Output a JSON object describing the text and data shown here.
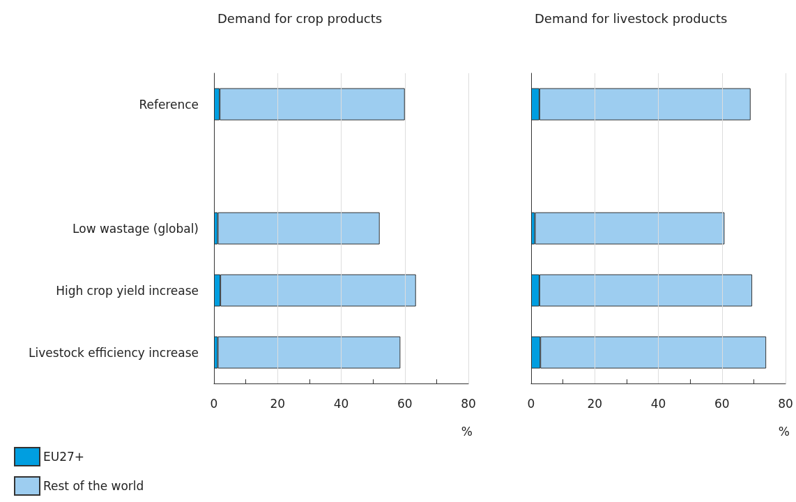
{
  "chart_data": [
    {
      "type": "bar",
      "orientation": "horizontal",
      "stacked": true,
      "title": "Demand for crop products",
      "xlabel": "%",
      "categories": [
        "Reference",
        null,
        "Low wastage (global)",
        "High crop yield increase",
        "Livestock efficiency increase"
      ],
      "series": [
        {
          "name": "EU27+",
          "color": "#009ee0",
          "values": [
            1.8,
            null,
            1.2,
            2.0,
            1.2
          ]
        },
        {
          "name": "Rest of the world",
          "color": "#9dcdf0",
          "values": [
            58.2,
            null,
            50.9,
            61.5,
            57.4
          ]
        }
      ],
      "xlim": [
        0,
        80
      ],
      "xticks": [
        0,
        {
          "value": 10,
          "label": null
        },
        20,
        {
          "value": 30,
          "label": null
        },
        40,
        {
          "value": 50,
          "label": null
        },
        60,
        {
          "value": 70,
          "label": null
        },
        80
      ],
      "grid": "x",
      "legend": "bottom left"
    },
    {
      "type": "bar",
      "orientation": "horizontal",
      "stacked": true,
      "title": "Demand for livestock products",
      "xlabel": "%",
      "categories": [
        null,
        null,
        null,
        null,
        null
      ],
      "series": [
        {
          "color": "#009ee0",
          "values": [
            2.6,
            null,
            1.2,
            2.6,
            2.9
          ]
        },
        {
          "color": "#9dcdf0",
          "values": [
            66.4,
            null,
            59.6,
            66.9,
            71.0
          ]
        }
      ],
      "xlim": [
        0,
        80
      ],
      "xticks": [
        0,
        {
          "value": 10,
          "label": null
        },
        20,
        {
          "value": 30,
          "label": null
        },
        40,
        {
          "value": 50,
          "label": null
        },
        60,
        {
          "value": 70,
          "label": null
        },
        80
      ],
      "grid": "x",
      "tick_labels": "x"
    }
  ]
}
